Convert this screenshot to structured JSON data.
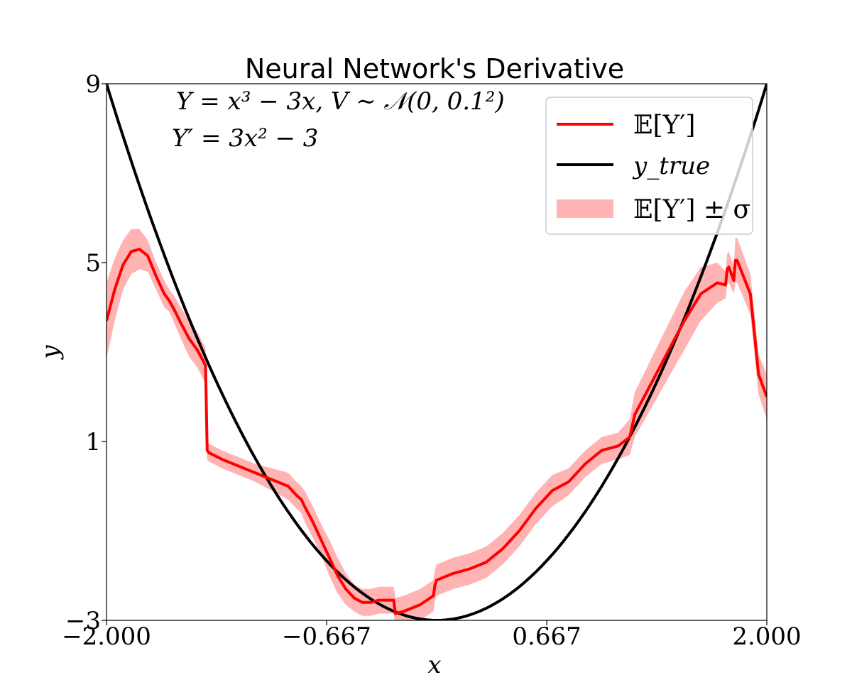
{
  "chart_data": {
    "type": "line",
    "title": "Neural Network's Derivative",
    "xlabel": "x",
    "ylabel": "y",
    "xlim": [
      -2.0,
      2.0
    ],
    "ylim": [
      -3,
      9
    ],
    "xticks": [
      {
        "value": -2.0,
        "label": "−2.000"
      },
      {
        "value": -0.667,
        "label": "−0.667"
      },
      {
        "value": 0.667,
        "label": "0.667"
      },
      {
        "value": 2.0,
        "label": "2.000"
      }
    ],
    "yticks": [
      {
        "value": -3,
        "label": "−3"
      },
      {
        "value": 1,
        "label": "1"
      },
      {
        "value": 5,
        "label": "5"
      },
      {
        "value": 9,
        "label": "9"
      }
    ],
    "annotations": [
      "Y = x³ − 3x,  V ∼ 𝒩(0, 0.1²)",
      "Y′ = 3x² − 3"
    ],
    "legend": {
      "placement": "top-right",
      "entries": [
        {
          "label": "𝔼[Y′]",
          "color": "#ff0000",
          "kind": "line"
        },
        {
          "label": "y_true",
          "color": "#000000",
          "kind": "line"
        },
        {
          "label": "𝔼[Y′] ± σ",
          "color": "#ffb3b3",
          "kind": "band"
        }
      ]
    },
    "series": [
      {
        "name": "𝔼[Y′]",
        "color": "#ff0000",
        "x": [
          -2.0,
          -1.95,
          -1.9,
          -1.85,
          -1.8,
          -1.75,
          -1.7,
          -1.65,
          -1.62,
          -1.59,
          -1.55,
          -1.5,
          -1.45,
          -1.4,
          -1.39,
          -1.38,
          -1.3,
          -1.2,
          -1.1,
          -1.0,
          -0.9,
          -0.85,
          -0.82,
          -0.8,
          -0.75,
          -0.7,
          -0.65,
          -0.6,
          -0.55,
          -0.5,
          -0.45,
          -0.4,
          -0.35,
          -0.3,
          -0.26,
          -0.25,
          -0.2,
          -0.1,
          -0.02,
          -0.01,
          0.0,
          0.1,
          0.2,
          0.3,
          0.4,
          0.5,
          0.6,
          0.7,
          0.8,
          0.9,
          1.0,
          1.1,
          1.17,
          1.2,
          1.3,
          1.4,
          1.5,
          1.6,
          1.7,
          1.75,
          1.76,
          1.77,
          1.8,
          1.81,
          1.82,
          1.9,
          1.92,
          1.95,
          2.0
        ],
        "values": [
          3.7,
          4.4,
          4.95,
          5.25,
          5.3,
          5.15,
          4.7,
          4.3,
          4.15,
          3.95,
          3.65,
          3.3,
          3.05,
          2.7,
          0.8,
          0.75,
          0.6,
          0.45,
          0.3,
          0.15,
          0.0,
          -0.2,
          -0.3,
          -0.45,
          -0.8,
          -1.2,
          -1.6,
          -2.0,
          -2.3,
          -2.5,
          -2.6,
          -2.6,
          -2.55,
          -2.55,
          -2.55,
          -2.85,
          -2.8,
          -2.65,
          -2.45,
          -2.2,
          -2.1,
          -1.95,
          -1.85,
          -1.7,
          -1.4,
          -1.0,
          -0.5,
          -0.1,
          0.1,
          0.5,
          0.8,
          0.9,
          1.1,
          1.6,
          2.3,
          3.0,
          3.7,
          4.3,
          4.55,
          4.5,
          4.85,
          4.9,
          4.6,
          5.05,
          5.05,
          4.3,
          3.6,
          2.5,
          2.0
        ]
      },
      {
        "name": "y_true",
        "color": "#000000",
        "function": "3x^2 - 3",
        "samples": 161
      },
      {
        "name": "𝔼[Y′] ± σ",
        "color": "#ffb3b3",
        "band_of": "𝔼[Y′]",
        "sigma": [
          0.85,
          0.7,
          0.55,
          0.5,
          0.45,
          0.35,
          0.3,
          0.3,
          0.25,
          0.3,
          0.35,
          0.4,
          0.4,
          0.4,
          0.2,
          0.2,
          0.2,
          0.2,
          0.2,
          0.25,
          0.3,
          0.3,
          0.3,
          0.35,
          0.35,
          0.35,
          0.4,
          0.4,
          0.35,
          0.3,
          0.3,
          0.3,
          0.3,
          0.3,
          0.3,
          0.35,
          0.35,
          0.35,
          0.35,
          0.35,
          0.35,
          0.35,
          0.35,
          0.35,
          0.35,
          0.35,
          0.35,
          0.35,
          0.3,
          0.3,
          0.3,
          0.3,
          0.4,
          0.5,
          0.55,
          0.6,
          0.65,
          0.6,
          0.45,
          0.3,
          0.35,
          0.35,
          0.3,
          0.5,
          0.5,
          0.45,
          0.45,
          0.45,
          0.5
        ]
      }
    ],
    "grid": false
  }
}
